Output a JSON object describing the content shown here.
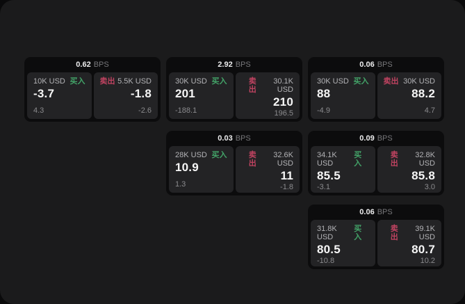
{
  "theme": {
    "surface_bg": "#1b1b1c",
    "card_bg": "#0c0c0d",
    "panel_bg": "#232325",
    "buy_color": "#43a368",
    "sell_color": "#c04361",
    "label_text": "#b3b3b6",
    "faint_text": "#8b8b8e",
    "muted_text": "#77777a"
  },
  "labels": {
    "bps_unit": "BPS",
    "buy": "买入",
    "sell": "卖出"
  },
  "cards": [
    {
      "bps": "0.62",
      "col": 1,
      "row": 1,
      "buy": {
        "notional": "10K USD",
        "price": "-3.7",
        "delta": "4.3"
      },
      "sell": {
        "notional": "5.5K USD",
        "price": "-1.8",
        "delta": "-2.6"
      }
    },
    {
      "bps": "2.92",
      "col": 2,
      "row": 1,
      "buy": {
        "notional": "30K USD",
        "price": "201",
        "delta": "-188.1"
      },
      "sell": {
        "notional": "30.1K USD",
        "price": "210",
        "delta": "196.5"
      }
    },
    {
      "bps": "0.06",
      "col": 3,
      "row": 1,
      "buy": {
        "notional": "30K USD",
        "price": "88",
        "delta": "-4.9"
      },
      "sell": {
        "notional": "30K USD",
        "price": "88.2",
        "delta": "4.7"
      }
    },
    {
      "bps": "0.03",
      "col": 2,
      "row": 2,
      "buy": {
        "notional": "28K USD",
        "price": "10.9",
        "delta": "1.3"
      },
      "sell": {
        "notional": "32.6K USD",
        "price": "11",
        "delta": "-1.8"
      }
    },
    {
      "bps": "0.09",
      "col": 3,
      "row": 2,
      "buy": {
        "notional": "34.1K USD",
        "price": "85.5",
        "delta": "-3.1"
      },
      "sell": {
        "notional": "32.8K USD",
        "price": "85.8",
        "delta": "3.0"
      }
    },
    {
      "bps": "0.06",
      "col": 3,
      "row": 3,
      "buy": {
        "notional": "31.8K USD",
        "price": "80.5",
        "delta": "-10.8"
      },
      "sell": {
        "notional": "39.1K USD",
        "price": "80.7",
        "delta": "10.2"
      }
    }
  ]
}
